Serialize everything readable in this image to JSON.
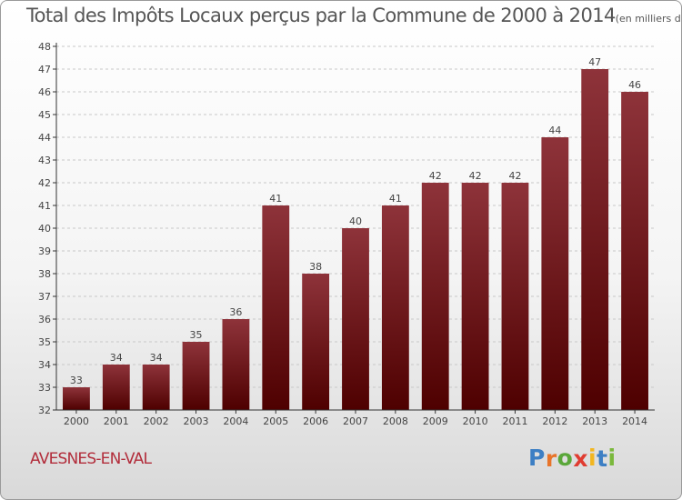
{
  "chart_data": {
    "type": "bar",
    "title": "Total des Impôts Locaux perçus par la Commune de 2000 à 2014",
    "unit_note": "(en milliers d'€)",
    "categories": [
      "2000",
      "2001",
      "2002",
      "2003",
      "2004",
      "2005",
      "2006",
      "2007",
      "2008",
      "2009",
      "2010",
      "2011",
      "2012",
      "2013",
      "2014"
    ],
    "values": [
      33,
      34,
      34,
      35,
      36,
      41,
      38,
      40,
      41,
      42,
      42,
      42,
      44,
      47,
      46
    ],
    "ylim": [
      32,
      48
    ],
    "yticks": [
      32,
      33,
      34,
      35,
      36,
      37,
      38,
      39,
      40,
      41,
      42,
      43,
      44,
      45,
      46,
      47,
      48
    ],
    "xlabel": "",
    "ylabel": "",
    "grid": "horizontal dashed",
    "colors": {
      "bar_top": "#8e333a",
      "bar_bottom": "#4e0000",
      "label": "#444444",
      "axis": "#333333"
    }
  },
  "commune": "AVESNES-EN-VAL",
  "logo": {
    "letters": [
      {
        "char": "P",
        "color": "#3d7fc4"
      },
      {
        "char": "r",
        "color": "#e8742a"
      },
      {
        "char": "o",
        "color": "#5aa73a"
      },
      {
        "char": "x",
        "color": "#e03c31"
      },
      {
        "char": "i",
        "color": "#f2b620"
      },
      {
        "char": "t",
        "color": "#3d7fc4"
      },
      {
        "char": "i",
        "color": "#7ab83c"
      }
    ]
  }
}
